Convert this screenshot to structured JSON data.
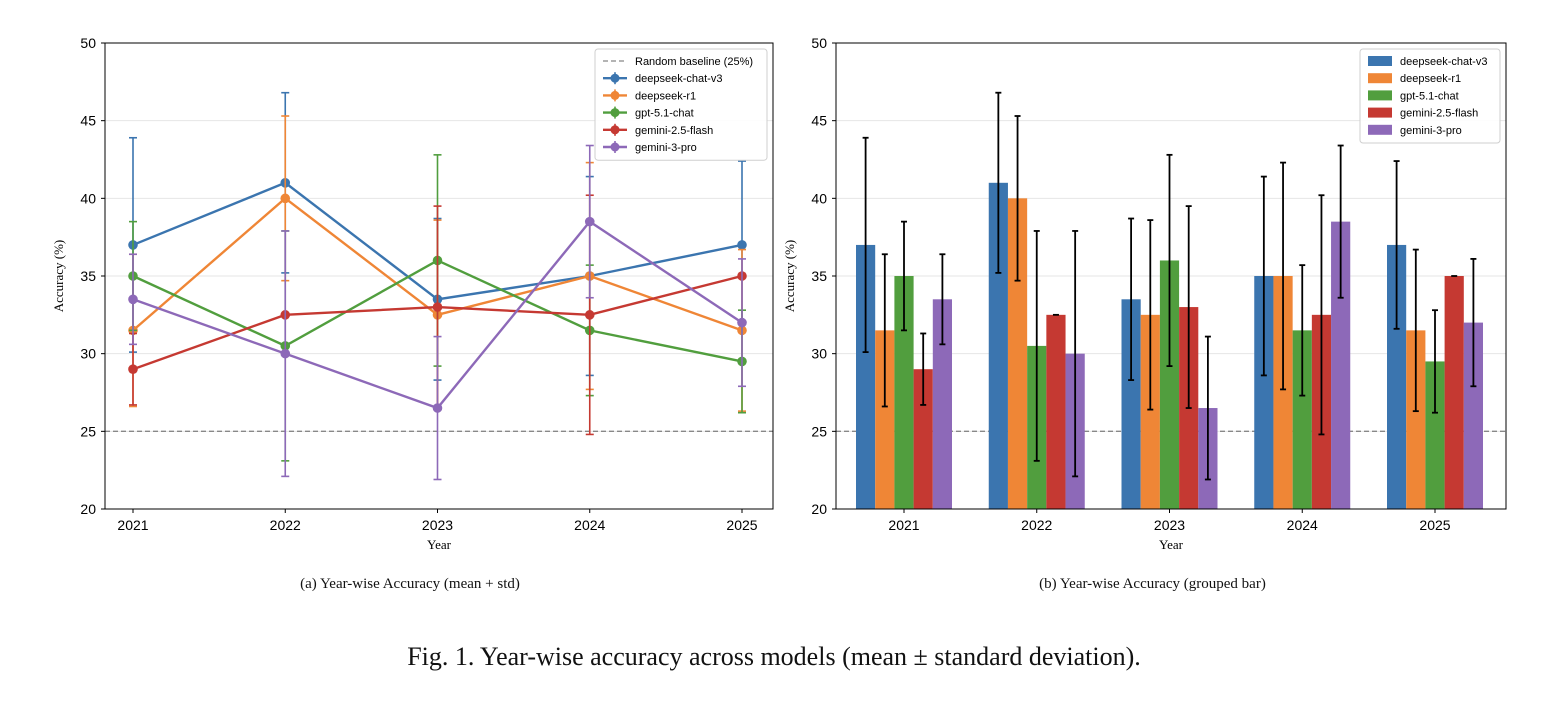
{
  "figure": {
    "caption": "Fig. 1.  Year-wise accuracy across models (mean ± standard deviation)."
  },
  "chart_data": [
    {
      "type": "line",
      "subcaption": "(a) Year-wise Accuracy (mean + std)",
      "title": "",
      "xlabel": "Year",
      "ylabel": "Accuracy (%)",
      "categories": [
        "2021",
        "2022",
        "2023",
        "2024",
        "2025"
      ],
      "ylim": [
        20,
        50
      ],
      "yticks": [
        "20",
        "25",
        "30",
        "35",
        "40",
        "45",
        "50"
      ],
      "grid": "horizontal",
      "legend_position": "top-right",
      "baseline": {
        "label": "Random baseline (25%)",
        "value": 25
      },
      "series": [
        {
          "name": "deepseek-chat-v3",
          "color": "#3b75af",
          "values": [
            37,
            41,
            33.5,
            35,
            37
          ],
          "std": [
            6.9,
            5.8,
            5.2,
            6.4,
            5.4
          ]
        },
        {
          "name": "deepseek-r1",
          "color": "#ef8636",
          "values": [
            31.5,
            40,
            32.5,
            35,
            31.5
          ],
          "std": [
            4.9,
            5.3,
            6.1,
            7.3,
            5.2
          ]
        },
        {
          "name": "gpt-5.1-chat",
          "color": "#519e3e",
          "values": [
            35,
            30.5,
            36,
            31.5,
            29.5
          ],
          "std": [
            3.5,
            7.4,
            6.8,
            4.2,
            3.3
          ]
        },
        {
          "name": "gemini-2.5-flash",
          "color": "#c53932",
          "values": [
            29,
            32.5,
            33,
            32.5,
            35
          ],
          "std": [
            2.3,
            0,
            6.5,
            7.7,
            0
          ]
        },
        {
          "name": "gemini-3-pro",
          "color": "#8d69b8",
          "values": [
            33.5,
            30,
            26.5,
            38.5,
            32
          ],
          "std": [
            2.9,
            7.9,
            4.6,
            4.9,
            4.1
          ]
        }
      ]
    },
    {
      "type": "bar",
      "subcaption": "(b) Year-wise Accuracy (grouped bar)",
      "title": "",
      "xlabel": "Year",
      "ylabel": "Accuracy (%)",
      "categories": [
        "2021",
        "2022",
        "2023",
        "2024",
        "2025"
      ],
      "ylim": [
        20,
        50
      ],
      "yticks": [
        "20",
        "25",
        "30",
        "35",
        "40",
        "45",
        "50"
      ],
      "grid": "horizontal",
      "legend_position": "top-right",
      "baseline": {
        "label": "",
        "value": 25
      },
      "series": [
        {
          "name": "deepseek-chat-v3",
          "color": "#3b75af",
          "values": [
            37,
            41,
            33.5,
            35,
            37
          ],
          "std": [
            6.9,
            5.8,
            5.2,
            6.4,
            5.4
          ]
        },
        {
          "name": "deepseek-r1",
          "color": "#ef8636",
          "values": [
            31.5,
            40,
            32.5,
            35,
            31.5
          ],
          "std": [
            4.9,
            5.3,
            6.1,
            7.3,
            5.2
          ]
        },
        {
          "name": "gpt-5.1-chat",
          "color": "#519e3e",
          "values": [
            35,
            30.5,
            36,
            31.5,
            29.5
          ],
          "std": [
            3.5,
            7.4,
            6.8,
            4.2,
            3.3
          ]
        },
        {
          "name": "gemini-2.5-flash",
          "color": "#c53932",
          "values": [
            29,
            32.5,
            33,
            32.5,
            35
          ],
          "std": [
            2.3,
            0,
            6.5,
            7.7,
            0
          ]
        },
        {
          "name": "gemini-3-pro",
          "color": "#8d69b8",
          "values": [
            33.5,
            30,
            26.5,
            38.5,
            32
          ],
          "std": [
            2.9,
            7.9,
            4.6,
            4.9,
            4.1
          ]
        }
      ]
    }
  ]
}
